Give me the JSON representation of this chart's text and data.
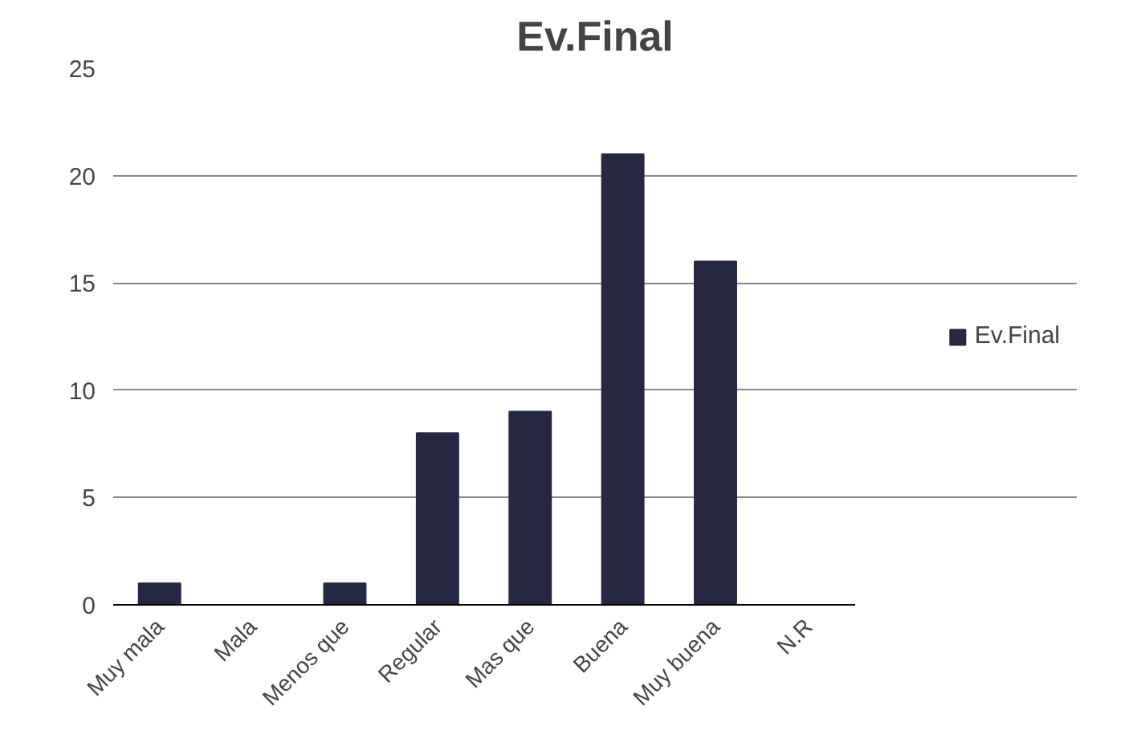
{
  "chart_data": {
    "type": "bar",
    "title": "Ev.Final",
    "categories": [
      "Muy mala",
      "Mala",
      "Menos que",
      "Regular",
      "Mas que",
      "Buena",
      "Muy buena",
      "N.R"
    ],
    "series": [
      {
        "name": "Ev.Final",
        "color": "#272742",
        "values": [
          1,
          0,
          1,
          8,
          9,
          21,
          16,
          0
        ]
      }
    ],
    "ylim": [
      0,
      25
    ],
    "yticks": [
      0,
      5,
      10,
      15,
      20,
      25
    ],
    "grid": "y",
    "legend": "right"
  }
}
